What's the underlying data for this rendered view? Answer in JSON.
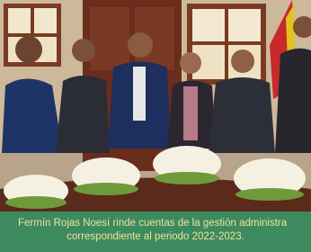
{
  "caption": {
    "lines": [
      "Fermín Rojas Noesí rinde cuentas de la gestión administra",
      "correspondiente al periodo 2022-2023."
    ]
  }
}
